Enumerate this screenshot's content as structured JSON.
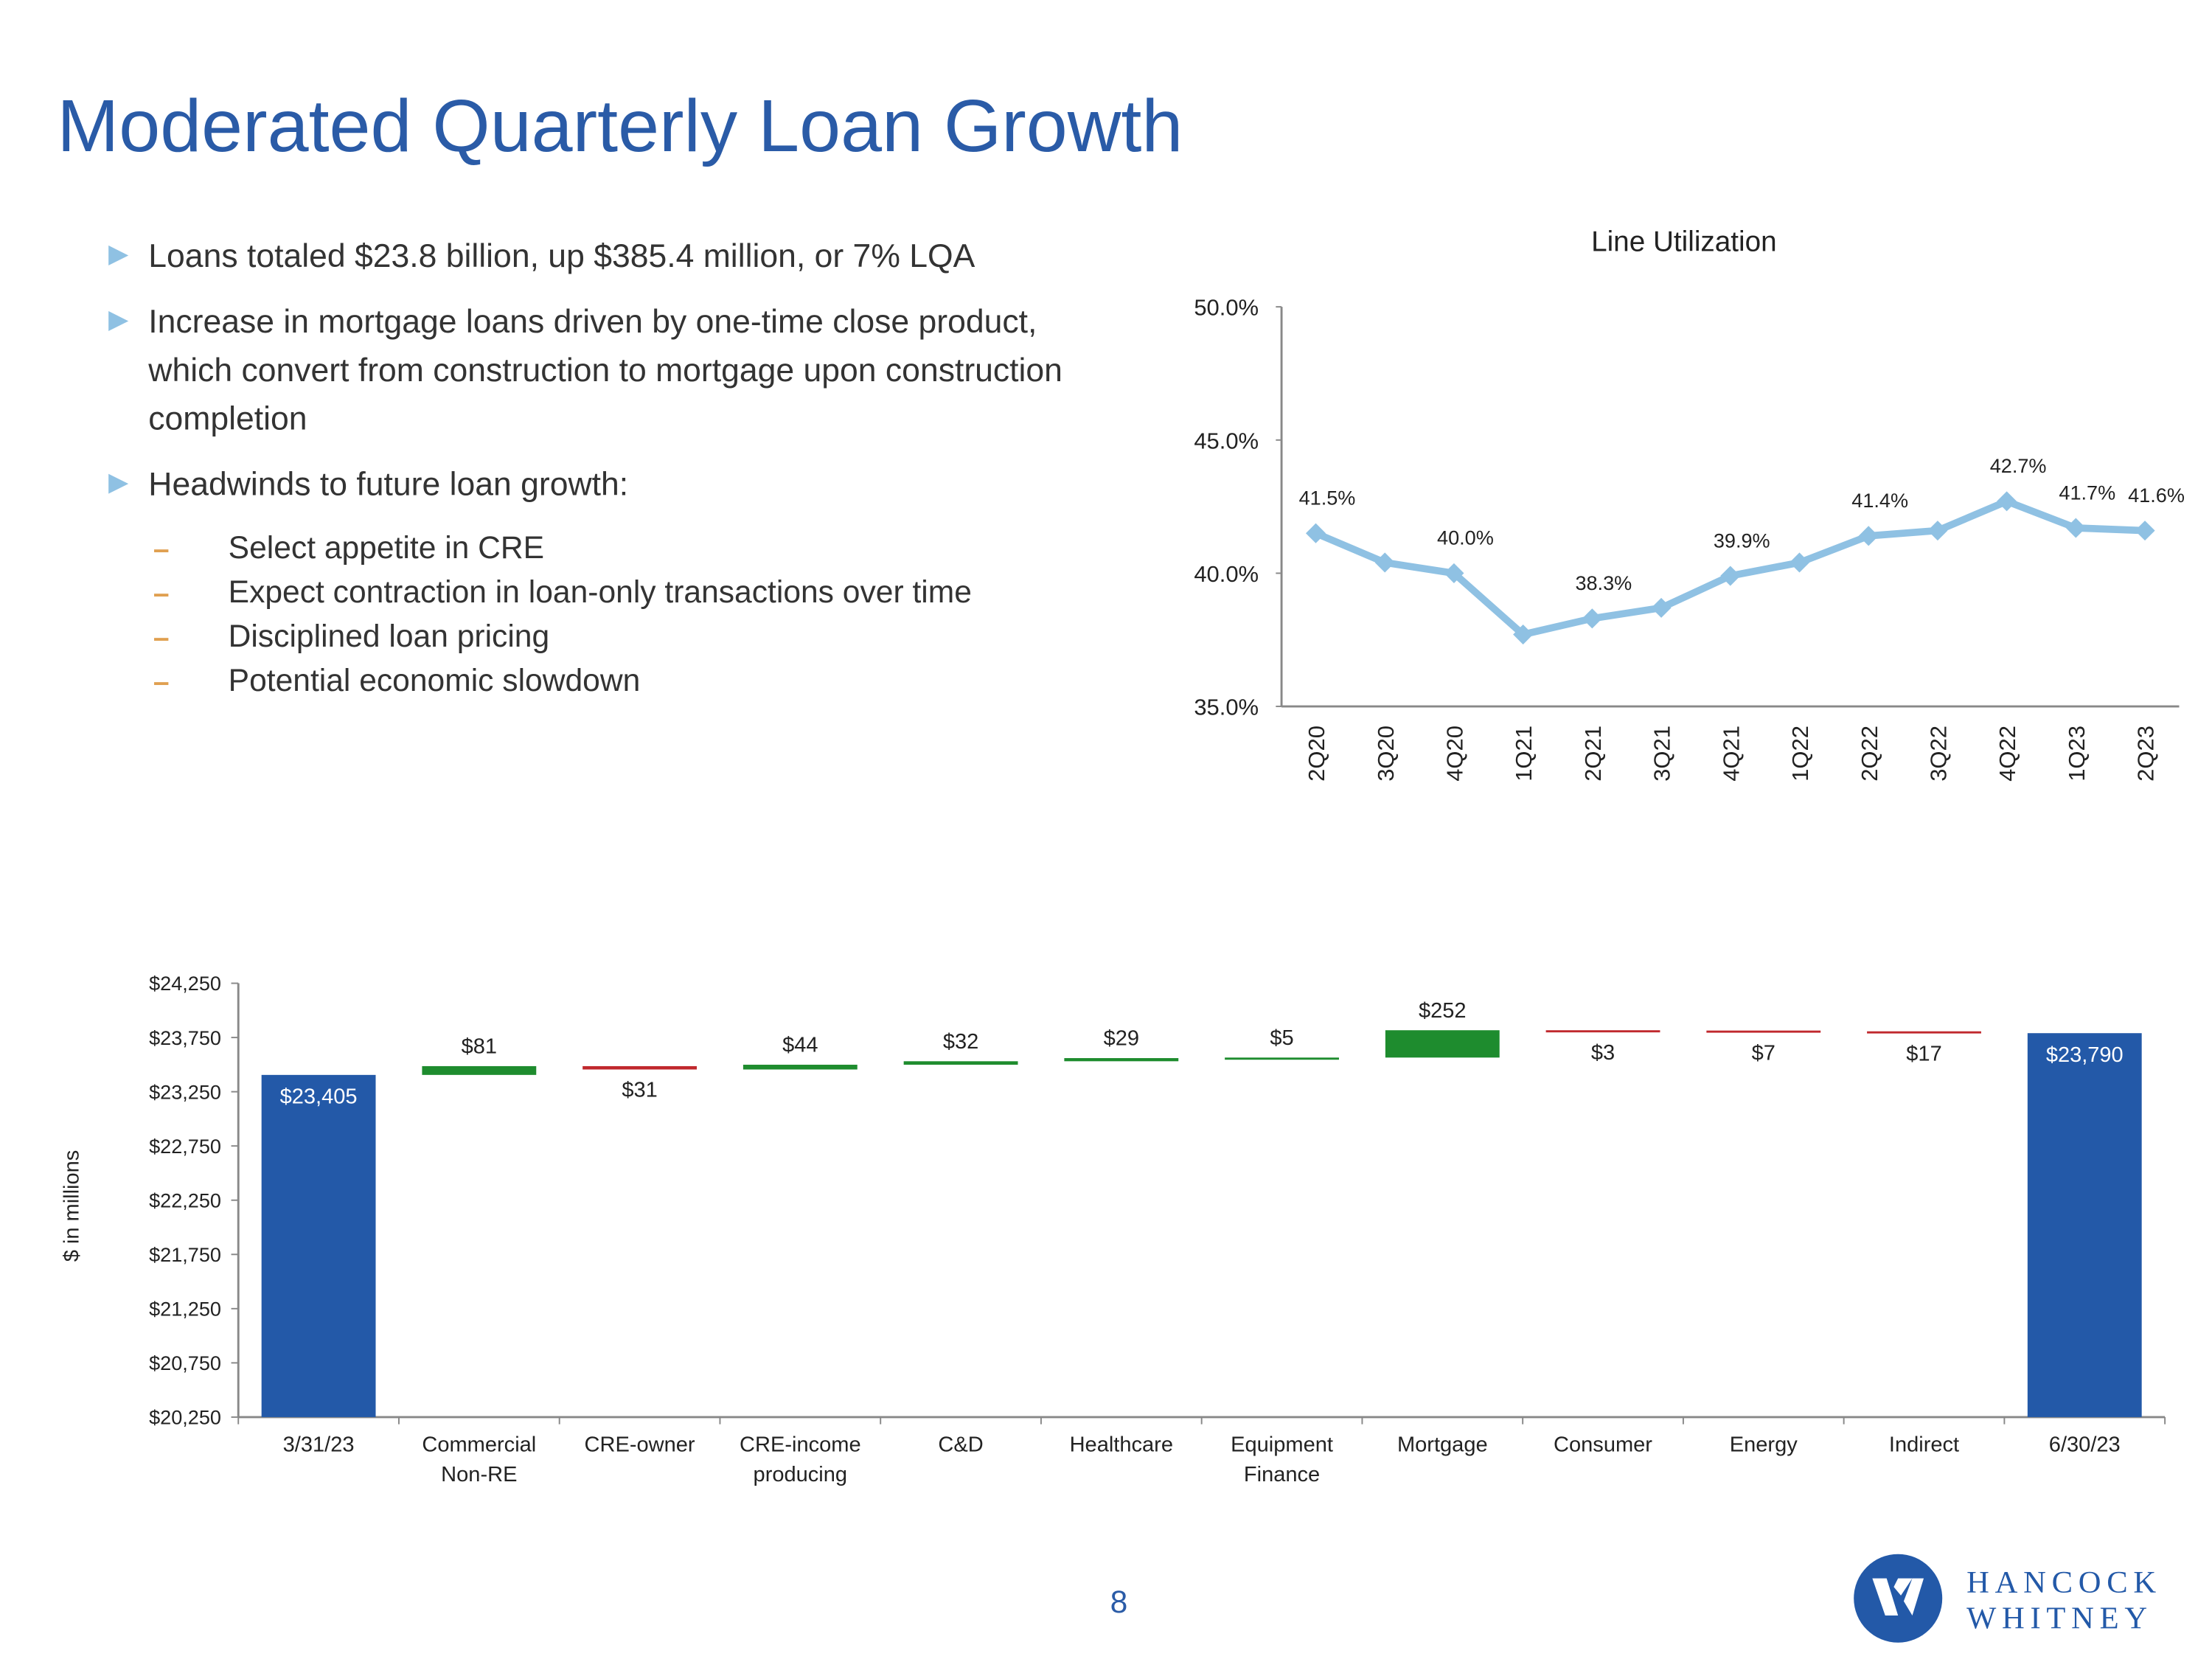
{
  "title": "Moderated Quarterly Loan Growth",
  "bullets": [
    {
      "text": "Loans totaled $23.8 billion, up $385.4 million, or 7% LQA",
      "sub": []
    },
    {
      "text": "Increase in mortgage loans driven by one-time close product, which convert from construction to mortgage upon construction completion",
      "sub": []
    },
    {
      "text": "Headwinds to future loan growth:",
      "sub": [
        "Select appetite in CRE",
        "Expect contraction in loan-only transactions over time",
        "Disciplined loan pricing",
        "Potential economic slowdown"
      ]
    }
  ],
  "page_number": "8",
  "logo": {
    "line1": "HANCOCK",
    "line2": "WHITNEY"
  },
  "chart_data": [
    {
      "type": "line",
      "title": "Line Utilization",
      "categories": [
        "2Q20",
        "3Q20",
        "4Q20",
        "1Q21",
        "2Q21",
        "3Q21",
        "4Q21",
        "1Q22",
        "2Q22",
        "3Q22",
        "4Q22",
        "1Q23",
        "2Q23"
      ],
      "values": [
        41.5,
        40.4,
        40.0,
        37.7,
        38.3,
        38.7,
        39.9,
        40.4,
        41.4,
        41.6,
        42.7,
        41.7,
        41.6
      ],
      "value_labels": [
        "41.5%",
        null,
        "40.0%",
        null,
        "38.3%",
        null,
        "39.9%",
        null,
        "41.4%",
        null,
        "42.7%",
        "41.7%",
        "41.6%"
      ],
      "color": "#8fc1e3",
      "ylim": [
        35,
        50
      ],
      "yticks": [
        {
          "value": 35,
          "label": "35.0%"
        },
        {
          "value": 40,
          "label": "40.0%"
        },
        {
          "value": 45,
          "label": "45.0%"
        },
        {
          "value": 50,
          "label": "50.0%"
        }
      ],
      "grid": false
    },
    {
      "type": "waterfall",
      "ylabel": "$ in millions",
      "categories": [
        "3/31/23",
        "Commercial Non-RE",
        "CRE-owner",
        "CRE-income producing",
        "C&D",
        "Healthcare",
        "Equipment Finance",
        "Mortgage",
        "Consumer",
        "Energy",
        "Indirect",
        "6/30/23"
      ],
      "measure": [
        "total",
        "relative",
        "relative",
        "relative",
        "relative",
        "relative",
        "relative",
        "relative",
        "relative",
        "relative",
        "relative",
        "total"
      ],
      "values": [
        23405,
        81,
        -31,
        44,
        32,
        29,
        5,
        252,
        -3,
        -7,
        -17,
        23790
      ],
      "value_labels": [
        "$23,405",
        "$81",
        "$31",
        "$44",
        "$32",
        "$29",
        "$5",
        "$252",
        "$3",
        "$7",
        "$17",
        "$23,790"
      ],
      "colors": {
        "total": "#2359a8",
        "increase": "#1e8c2e",
        "decrease": "#c0282d"
      },
      "ylim": [
        20250,
        24250
      ],
      "yticks": [
        {
          "value": 20250,
          "label": "$20,250"
        },
        {
          "value": 20750,
          "label": "$20,750"
        },
        {
          "value": 21250,
          "label": "$21,250"
        },
        {
          "value": 21750,
          "label": "$21,750"
        },
        {
          "value": 22250,
          "label": "$22,250"
        },
        {
          "value": 22750,
          "label": "$22,750"
        },
        {
          "value": 23250,
          "label": "$23,250"
        },
        {
          "value": 23750,
          "label": "$23,750"
        },
        {
          "value": 24250,
          "label": "$24,250"
        }
      ],
      "grid": false
    }
  ]
}
